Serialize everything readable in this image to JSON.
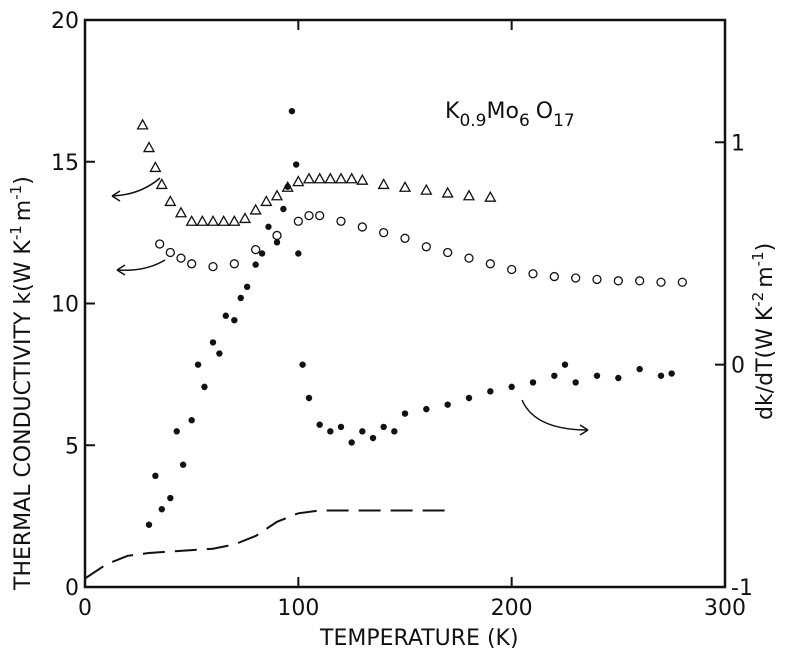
{
  "chart_data": {
    "type": "scatter",
    "annotation_parts": [
      "K",
      "0.9",
      "Mo",
      "6",
      "O",
      "17"
    ],
    "xlabel": "TEMPERATURE (K)",
    "ylabel_parts": [
      "THERMAL CONDUCTIVITY  k(W K",
      "-1",
      "m",
      "-1",
      ")"
    ],
    "y2label_parts": [
      "dk/dT(W K",
      "-2",
      "m",
      "-1",
      ")"
    ],
    "xlim": [
      0,
      300
    ],
    "xticks": [
      0,
      100,
      200,
      300
    ],
    "ylim": [
      0,
      20
    ],
    "yticks": [
      0,
      5,
      10,
      15,
      20
    ],
    "y2lim": [
      -1,
      1.55
    ],
    "y2ticks": [
      -1,
      0,
      1
    ],
    "color": "#111111",
    "series": [
      {
        "marker": "triangle",
        "axis": "y",
        "x": [
          27,
          30,
          33,
          36,
          40,
          45,
          50,
          55,
          60,
          65,
          70,
          75,
          80,
          85,
          90,
          95,
          100,
          105,
          110,
          115,
          120,
          125,
          130,
          140,
          150,
          160,
          170,
          180,
          190
        ],
        "values": [
          16.3,
          15.5,
          14.8,
          14.2,
          13.6,
          13.2,
          12.9,
          12.9,
          12.9,
          12.9,
          12.9,
          13.0,
          13.3,
          13.6,
          13.8,
          14.1,
          14.3,
          14.4,
          14.4,
          14.4,
          14.4,
          14.4,
          14.35,
          14.2,
          14.1,
          14.0,
          13.9,
          13.8,
          13.75
        ]
      },
      {
        "marker": "circle",
        "axis": "y",
        "x": [
          35,
          40,
          45,
          50,
          60,
          70,
          80,
          90,
          100,
          105,
          110,
          120,
          130,
          140,
          150,
          160,
          170,
          180,
          190,
          200,
          210,
          220,
          230,
          240,
          250,
          260,
          270,
          280
        ],
        "values": [
          12.1,
          11.8,
          11.6,
          11.4,
          11.3,
          11.4,
          11.9,
          12.4,
          12.9,
          13.1,
          13.1,
          12.9,
          12.7,
          12.5,
          12.3,
          12.0,
          11.8,
          11.6,
          11.4,
          11.2,
          11.05,
          10.95,
          10.9,
          10.85,
          10.8,
          10.8,
          10.75,
          10.75
        ]
      },
      {
        "marker": "dot",
        "axis": "y2",
        "x": [
          30,
          33,
          36,
          40,
          43,
          46,
          50,
          53,
          56,
          60,
          63,
          66,
          70,
          73,
          76,
          80,
          83,
          86,
          90,
          93,
          95,
          97,
          99,
          100,
          102,
          105,
          110,
          115,
          120,
          125,
          130,
          135,
          140,
          145,
          150,
          160,
          170,
          180,
          190,
          200,
          210,
          220,
          225,
          230,
          240,
          250,
          260,
          270,
          275
        ],
        "values": [
          -0.72,
          -0.5,
          -0.65,
          -0.6,
          -0.3,
          -0.45,
          -0.25,
          0.0,
          -0.1,
          0.1,
          0.05,
          0.22,
          0.2,
          0.3,
          0.35,
          0.45,
          0.5,
          0.62,
          0.55,
          0.7,
          0.8,
          1.14,
          0.9,
          0.5,
          0.0,
          -0.15,
          -0.27,
          -0.3,
          -0.28,
          -0.35,
          -0.3,
          -0.33,
          -0.28,
          -0.3,
          -0.22,
          -0.2,
          -0.18,
          -0.15,
          -0.12,
          -0.1,
          -0.08,
          -0.05,
          0.0,
          -0.08,
          -0.05,
          -0.06,
          -0.02,
          -0.05,
          -0.04
        ]
      },
      {
        "marker": "dashed",
        "axis": "y",
        "x": [
          0,
          10,
          20,
          30,
          40,
          50,
          60,
          70,
          80,
          90,
          100,
          110,
          120,
          170
        ],
        "values": [
          0.3,
          0.8,
          1.1,
          1.2,
          1.25,
          1.3,
          1.35,
          1.5,
          1.8,
          2.3,
          2.6,
          2.7,
          2.7,
          2.7
        ]
      }
    ]
  }
}
